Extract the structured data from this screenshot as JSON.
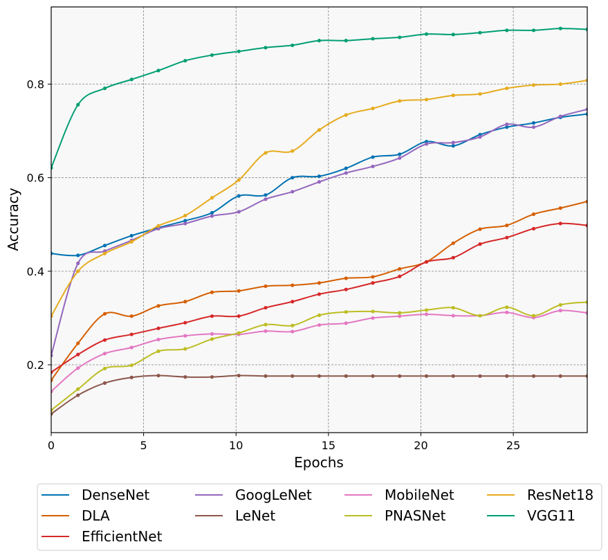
{
  "chart_data": {
    "type": "line",
    "title": "",
    "xlabel": "Epochs",
    "ylabel": "Accuracy",
    "xlim": [
      0,
      29
    ],
    "ylim": [
      0.055,
      0.965
    ],
    "grid": true,
    "background_color": "#f8f8f8",
    "xticks": [
      0,
      5,
      10,
      15,
      20,
      25
    ],
    "yticks": [
      0.2,
      0.4,
      0.6,
      0.8
    ],
    "xtick_labels": [
      "0",
      "5",
      "10",
      "15",
      "20",
      "25"
    ],
    "ytick_labels": [
      "0.2",
      "0.4",
      "0.6",
      "0.8"
    ],
    "x": [
      0,
      1.45,
      2.9,
      4.35,
      5.8,
      7.25,
      8.7,
      10.15,
      11.6,
      13.05,
      14.5,
      15.95,
      17.4,
      18.85,
      20.3,
      21.75,
      23.2,
      24.65,
      26.1,
      27.55,
      29
    ],
    "legend_position": "bottom",
    "legend_columns": 4,
    "series": [
      {
        "name": "DenseNet",
        "color": "#0072b2",
        "values": [
          0.438,
          0.434,
          0.455,
          0.476,
          0.493,
          0.508,
          0.525,
          0.561,
          0.563,
          0.6,
          0.603,
          0.62,
          0.644,
          0.65,
          0.677,
          0.668,
          0.692,
          0.708,
          0.717,
          0.729,
          0.736
        ]
      },
      {
        "name": "DLA",
        "color": "#d55e00",
        "values": [
          0.167,
          0.246,
          0.309,
          0.304,
          0.326,
          0.335,
          0.355,
          0.358,
          0.368,
          0.37,
          0.375,
          0.385,
          0.388,
          0.405,
          0.42,
          0.46,
          0.49,
          0.498,
          0.522,
          0.535,
          0.549
        ]
      },
      {
        "name": "EfficientNet",
        "color": "#d62728",
        "values": [
          0.184,
          0.222,
          0.253,
          0.265,
          0.278,
          0.29,
          0.304,
          0.304,
          0.322,
          0.335,
          0.351,
          0.361,
          0.375,
          0.389,
          0.42,
          0.429,
          0.458,
          0.472,
          0.491,
          0.502,
          0.498
        ]
      },
      {
        "name": "GoogLeNet",
        "color": "#9467bd",
        "values": [
          0.22,
          0.417,
          0.443,
          0.466,
          0.491,
          0.502,
          0.518,
          0.527,
          0.554,
          0.57,
          0.591,
          0.61,
          0.624,
          0.642,
          0.672,
          0.675,
          0.687,
          0.714,
          0.708,
          0.731,
          0.746
        ]
      },
      {
        "name": "LeNet",
        "color": "#8c564b",
        "values": [
          0.095,
          0.135,
          0.161,
          0.173,
          0.177,
          0.174,
          0.174,
          0.177,
          0.176,
          0.176,
          0.176,
          0.176,
          0.176,
          0.176,
          0.176,
          0.176,
          0.176,
          0.176,
          0.176,
          0.176,
          0.176
        ]
      },
      {
        "name": "MobileNet",
        "color": "#e377c2",
        "values": [
          0.143,
          0.193,
          0.224,
          0.237,
          0.254,
          0.262,
          0.266,
          0.265,
          0.272,
          0.271,
          0.285,
          0.289,
          0.3,
          0.304,
          0.308,
          0.305,
          0.305,
          0.312,
          0.301,
          0.316,
          0.311
        ]
      },
      {
        "name": "PNASNet",
        "color": "#bcbd22",
        "values": [
          0.103,
          0.148,
          0.192,
          0.199,
          0.229,
          0.234,
          0.255,
          0.268,
          0.286,
          0.284,
          0.306,
          0.313,
          0.314,
          0.311,
          0.317,
          0.322,
          0.305,
          0.323,
          0.305,
          0.328,
          0.334
        ]
      },
      {
        "name": "ResNet18",
        "color": "#e6ab1e",
        "values": [
          0.304,
          0.4,
          0.438,
          0.463,
          0.497,
          0.519,
          0.557,
          0.595,
          0.653,
          0.657,
          0.702,
          0.734,
          0.748,
          0.764,
          0.767,
          0.776,
          0.779,
          0.791,
          0.798,
          0.8,
          0.808
        ]
      },
      {
        "name": "VGG11",
        "color": "#009e73",
        "values": [
          0.621,
          0.756,
          0.791,
          0.81,
          0.829,
          0.85,
          0.862,
          0.87,
          0.878,
          0.883,
          0.893,
          0.893,
          0.897,
          0.9,
          0.907,
          0.906,
          0.91,
          0.915,
          0.915,
          0.919,
          0.917
        ]
      }
    ]
  }
}
